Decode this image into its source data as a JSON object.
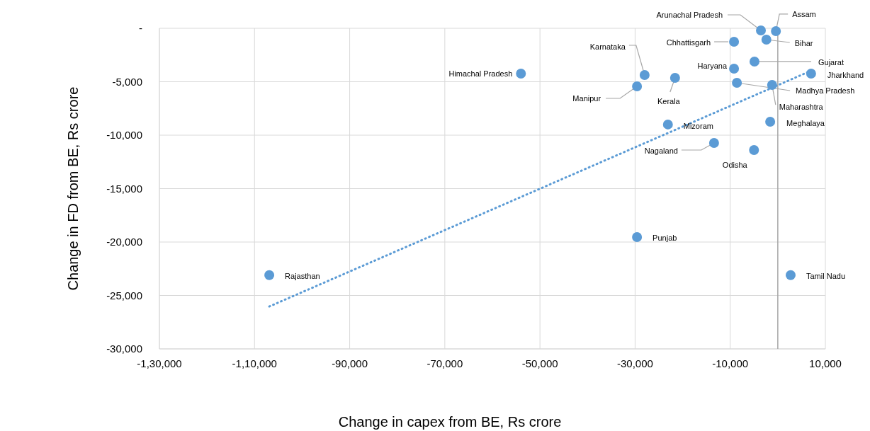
{
  "chart_data": {
    "type": "scatter",
    "xlabel": "Change in capex from BE, Rs crore",
    "ylabel": "Change in FD from BE, Rs crore",
    "xlim": [
      -130000,
      10000
    ],
    "xticks": [
      {
        "value": -130000,
        "label": "-1,30,000"
      },
      {
        "value": -110000,
        "label": "-1,10,000"
      },
      {
        "value": -90000,
        "label": "-90,000"
      },
      {
        "value": -70000,
        "label": "-70,000"
      },
      {
        "value": -50000,
        "label": "-50,000"
      },
      {
        "value": -30000,
        "label": "-30,000"
      },
      {
        "value": -10000,
        "label": "-10,000"
      },
      {
        "value": 10000,
        "label": "10,000"
      }
    ],
    "ylim": [
      -30000,
      0
    ],
    "yticks": [
      {
        "value": 0,
        "label": "-"
      },
      {
        "value": -5000,
        "label": "-5,000"
      },
      {
        "value": -10000,
        "label": "-10,000"
      },
      {
        "value": -15000,
        "label": "-15,000"
      },
      {
        "value": -20000,
        "label": "-20,000"
      },
      {
        "value": -25000,
        "label": "-25,000"
      },
      {
        "value": -30000,
        "label": "-30,000"
      }
    ],
    "grid": true,
    "marker": "circle",
    "ref_lines": [
      {
        "axis": "x",
        "value": 0,
        "color": "#a6a6a6"
      }
    ],
    "series": [
      {
        "color": "#5b9bd5",
        "x": [
          -106900,
          -54000,
          -28000,
          -29600,
          -21600,
          -23100,
          -29600,
          -13400,
          -9200,
          -9200,
          -8600,
          -4900,
          -5000,
          -3550,
          -400,
          -2400,
          -1200,
          -1600,
          7000,
          2700
        ],
        "values": [
          -23100,
          -4240,
          -4370,
          -5430,
          -4640,
          -9000,
          -19540,
          -10730,
          -1260,
          -3770,
          -5100,
          -3110,
          -11390,
          -200,
          -260,
          -1060,
          -5300,
          -8740,
          -4240,
          -23100
        ]
      },
      {
        "type": "line",
        "color": "#5b9bd5",
        "line_style": "dotted",
        "marker": "none",
        "x": [
          -106900,
          7000
        ],
        "values": [
          -26030,
          -3970
        ]
      }
    ],
    "annotations": [
      {
        "text": "Rajasthan",
        "x": -106900,
        "y": -23100
      },
      {
        "text": "Himachal Pradesh",
        "x": -54000,
        "y": -4240
      },
      {
        "text": "Karnataka",
        "x": -28000,
        "y": -4370
      },
      {
        "text": "Manipur",
        "x": -29600,
        "y": -5430
      },
      {
        "text": "Kerala",
        "x": -21600,
        "y": -4640
      },
      {
        "text": "Mizoram",
        "x": -23100,
        "y": -9000
      },
      {
        "text": "Punjab",
        "x": -29600,
        "y": -19540
      },
      {
        "text": "Nagaland",
        "x": -13400,
        "y": -10730
      },
      {
        "text": "Chhattisgarh",
        "x": -9200,
        "y": -1260
      },
      {
        "text": "Haryana",
        "x": -9200,
        "y": -3770
      },
      {
        "text": "Madhya Pradesh",
        "x": -8600,
        "y": -5100
      },
      {
        "text": "Gujarat",
        "x": -4900,
        "y": -3110
      },
      {
        "text": "Odisha",
        "x": -5000,
        "y": -11390
      },
      {
        "text": "Arunachal Pradesh",
        "x": -3550,
        "y": -200
      },
      {
        "text": "Assam",
        "x": -400,
        "y": -260
      },
      {
        "text": "Bihar",
        "x": -2400,
        "y": -1060
      },
      {
        "text": "Maharashtra",
        "x": -1200,
        "y": -5300
      },
      {
        "text": "Meghalaya",
        "x": -1600,
        "y": -8740
      },
      {
        "text": "Jharkhand",
        "x": 7000,
        "y": -4240
      },
      {
        "text": "Tamil Nadu",
        "x": 2700,
        "y": -23100
      }
    ]
  }
}
